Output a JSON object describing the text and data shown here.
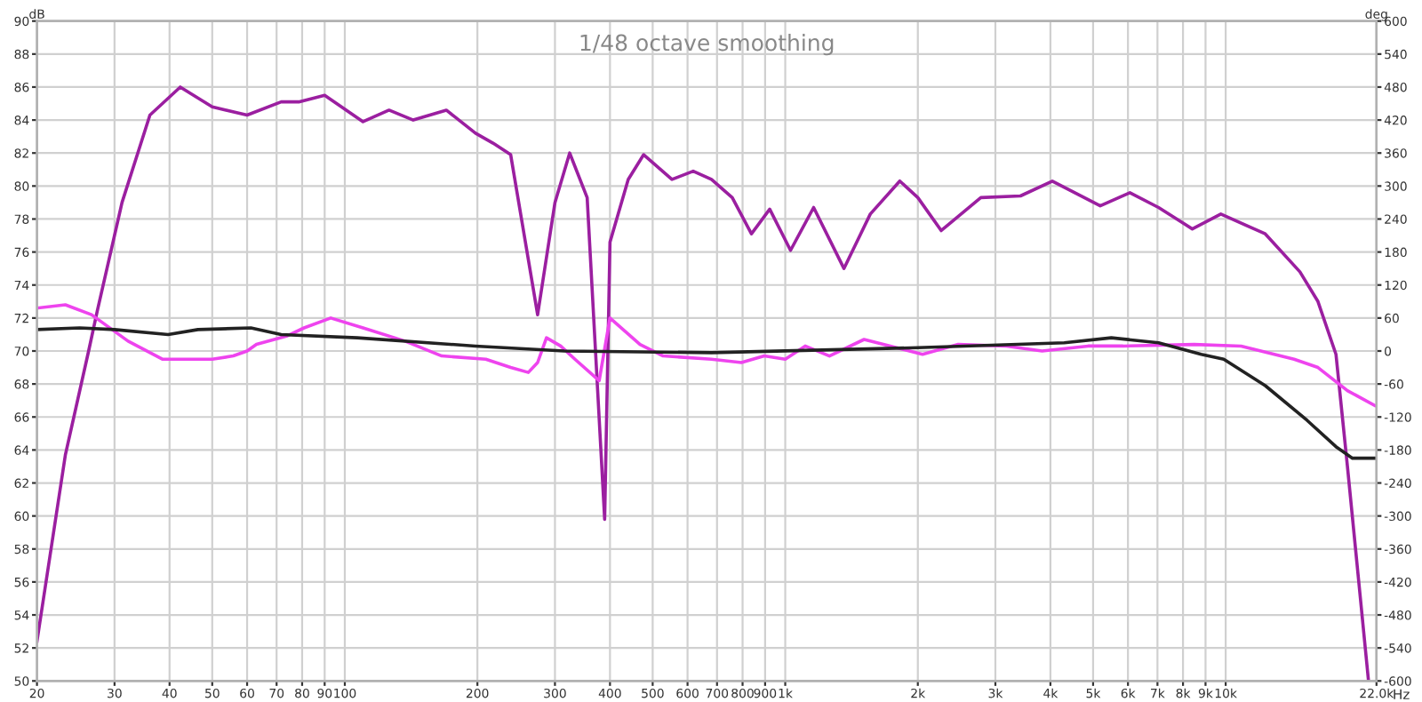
{
  "chart_data": {
    "type": "line",
    "title": "1/48 octave smoothing",
    "ylabel": "dB",
    "y2label": "deg",
    "xlabel": "Hz",
    "log": "x",
    "grid": true,
    "legend": false,
    "marker": "none",
    "line_style": "solid",
    "xlim": [
      20,
      22000
    ],
    "xticks": [
      20,
      30,
      40,
      50,
      60,
      70,
      80,
      90,
      100,
      200,
      300,
      400,
      500,
      600,
      700,
      800,
      900,
      {
        "value": 1000,
        "label": "1k"
      },
      {
        "value": 2000,
        "label": "2k"
      },
      {
        "value": 3000,
        "label": "3k"
      },
      {
        "value": 4000,
        "label": "4k"
      },
      {
        "value": 5000,
        "label": "5k"
      },
      {
        "value": 6000,
        "label": "6k"
      },
      {
        "value": 7000,
        "label": "7k"
      },
      {
        "value": 8000,
        "label": "8k"
      },
      {
        "value": 9000,
        "label": "9k"
      },
      {
        "value": 10000,
        "label": "10k"
      },
      {
        "value": 22000,
        "label": "22.0k"
      }
    ],
    "ylim": [
      50,
      90
    ],
    "yticks": [
      50,
      52,
      54,
      56,
      58,
      60,
      62,
      64,
      66,
      68,
      70,
      72,
      74,
      76,
      78,
      80,
      82,
      84,
      86,
      88,
      90
    ],
    "y2lim": [
      -600,
      600
    ],
    "y2ticks": [
      -600,
      -540,
      -480,
      -420,
      -360,
      -300,
      -240,
      -180,
      -120,
      -60,
      0,
      60,
      120,
      180,
      240,
      300,
      360,
      420,
      480,
      540,
      600
    ],
    "series": [
      {
        "color": "#9b1fa0",
        "x": [
          20,
          23.2,
          26.2,
          27.4,
          31.2,
          36.1,
          42.3,
          50,
          60,
          71.7,
          78.6,
          90,
          110,
          126,
          143,
          170,
          198,
          217,
          238,
          274,
          300,
          324,
          355,
          389,
          400,
          440,
          477,
          553,
          618,
          680,
          758,
          838,
          922,
          1028,
          1160,
          1359,
          1560,
          1820,
          2000,
          2260,
          2780,
          3420,
          4040,
          5190,
          6060,
          7040,
          8400,
          9750,
          12300,
          14740,
          16200,
          17800,
          18900,
          21100
        ],
        "values": [
          52.4,
          63.7,
          70,
          72.4,
          79,
          84.3,
          86,
          84.8,
          84.3,
          85.1,
          85.1,
          85.5,
          83.9,
          84.6,
          84,
          84.6,
          83.2,
          82.6,
          81.9,
          72.2,
          79,
          82,
          79.3,
          59.8,
          76.6,
          80.4,
          81.9,
          80.4,
          80.9,
          80.4,
          79.3,
          77.1,
          78.6,
          76.1,
          78.7,
          75,
          78.3,
          80.3,
          79.3,
          77.3,
          79.3,
          79.4,
          80.3,
          78.8,
          79.6,
          78.7,
          77.4,
          78.3,
          77.1,
          74.8,
          73,
          69.8,
          63,
          50
        ]
      },
      {
        "color": "#ee44ee",
        "x": [
          20,
          23.2,
          26.6,
          32.2,
          38.6,
          50,
          55.8,
          60,
          63,
          73.7,
          80.8,
          92.9,
          110,
          137,
          166,
          209,
          238,
          261,
          274,
          287,
          309,
          333,
          378,
          400,
          468,
          528,
          680,
          795,
          896,
          1000,
          1110,
          1260,
          1510,
          2050,
          2470,
          3180,
          3830,
          4870,
          5850,
          8480,
          10840,
          14300,
          16200,
          18900,
          21800
        ],
        "values": [
          72.6,
          72.8,
          72.2,
          70.6,
          69.5,
          69.5,
          69.7,
          70,
          70.4,
          70.9,
          71.4,
          72,
          71.4,
          70.6,
          69.7,
          69.5,
          69,
          68.7,
          69.3,
          70.8,
          70.3,
          69.5,
          68.2,
          72,
          70.4,
          69.7,
          69.5,
          69.3,
          69.7,
          69.5,
          70.3,
          69.7,
          70.7,
          69.8,
          70.4,
          70.3,
          70,
          70.3,
          70.3,
          70.4,
          70.3,
          69.5,
          69,
          67.6,
          66.7
        ]
      },
      {
        "color": "#222222",
        "x": [
          20,
          25,
          30,
          39.7,
          46.4,
          61.2,
          71.7,
          106.7,
          198,
          315,
          680,
          2000,
          4300,
          5500,
          7040,
          8800,
          9900,
          12300,
          15300,
          17800,
          19400,
          21800
        ],
        "values": [
          71.3,
          71.4,
          71.3,
          71,
          71.3,
          71.4,
          71,
          70.8,
          70.3,
          70,
          69.9,
          70.2,
          70.5,
          70.8,
          70.5,
          69.8,
          69.5,
          67.9,
          65.8,
          64.2,
          63.5,
          63.5
        ]
      }
    ]
  }
}
